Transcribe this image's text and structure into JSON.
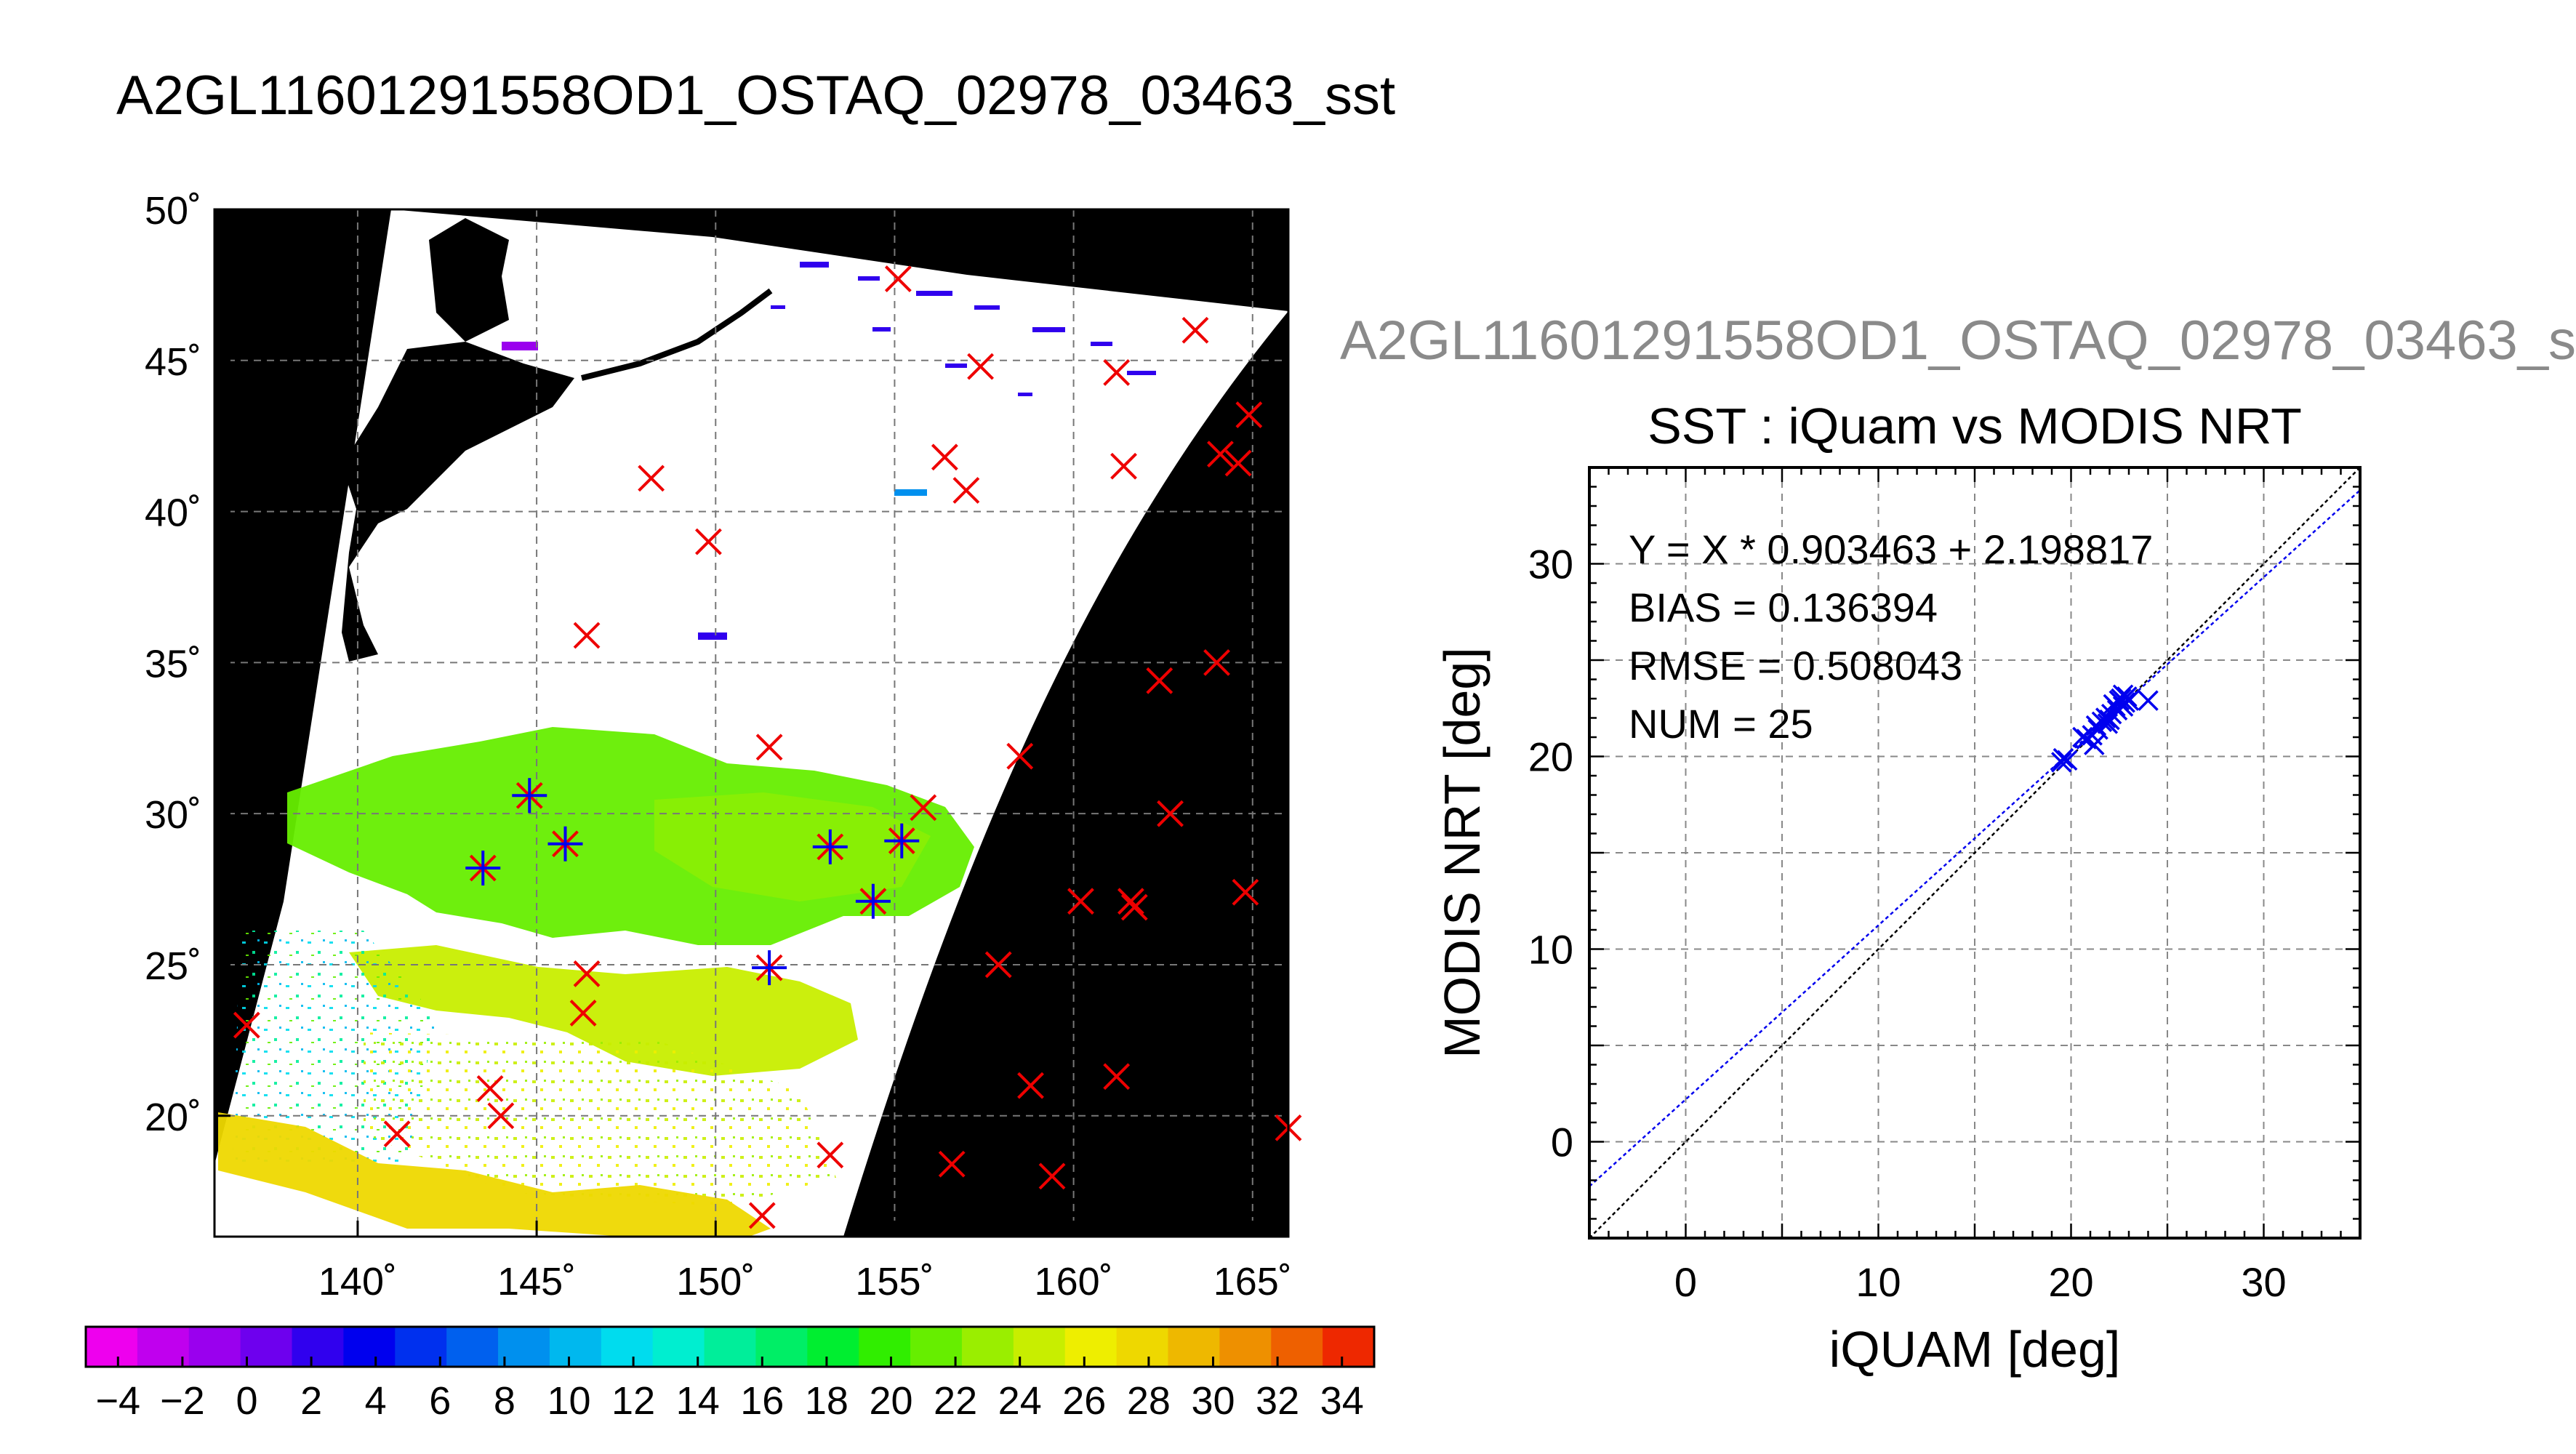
{
  "figure": {
    "title": "A2GL11601291558OD1_OSTAQ_02978_03463_sst",
    "ghost_title": "A2GL11601291558OD1_OSTAQ_02978_03463_s"
  },
  "chart_data": [
    {
      "type": "map",
      "title": "",
      "xlabel": "",
      "ylabel": "",
      "lon_range": [
        136,
        166
      ],
      "lat_range": [
        16,
        50
      ],
      "lon_ticks": [
        140,
        145,
        150,
        155,
        160,
        165
      ],
      "lat_ticks": [
        20,
        25,
        30,
        35,
        40,
        45,
        50
      ],
      "lon_tick_labels": [
        "140˚",
        "145˚",
        "150˚",
        "155˚",
        "160˚",
        "165˚"
      ],
      "lat_tick_labels": [
        "20˚",
        "25˚",
        "30˚",
        "35˚",
        "40˚",
        "45˚",
        "50˚"
      ],
      "grid": true,
      "colorbar": {
        "range": [
          -5,
          35
        ],
        "ticks": [
          -4,
          -2,
          0,
          2,
          4,
          6,
          8,
          10,
          12,
          14,
          16,
          18,
          20,
          22,
          24,
          26,
          28,
          30,
          32,
          34
        ],
        "tick_labels": [
          "−4",
          "−2",
          "0",
          "2",
          "4",
          "6",
          "8",
          "10",
          "12",
          "14",
          "16",
          "18",
          "20",
          "22",
          "24",
          "26",
          "28",
          "30",
          "32",
          "34"
        ],
        "colors": [
          "#ee00ee",
          "#c000ee",
          "#9a00ee",
          "#6e00ee",
          "#3000ee",
          "#0000ee",
          "#0030ee",
          "#0060ee",
          "#0090ee",
          "#00b8ee",
          "#00dcee",
          "#00eed0",
          "#00ee9a",
          "#00ee66",
          "#00ee30",
          "#30ee00",
          "#66ee00",
          "#9aee00",
          "#c8ee00",
          "#eeee00",
          "#eed800",
          "#eeb800",
          "#ee9000",
          "#ee6000",
          "#ee2800"
        ]
      },
      "series": [
        {
          "name": "",
          "marker": "x",
          "color": "#ee0000",
          "points": [
            [
              155.1,
              47.7
            ],
            [
              163.4,
              46.0
            ],
            [
              157.4,
              44.8
            ],
            [
              161.2,
              44.6
            ],
            [
              164.9,
              43.2
            ],
            [
              156.4,
              41.8
            ],
            [
              161.4,
              41.5
            ],
            [
              164.1,
              41.9
            ],
            [
              164.6,
              41.6
            ],
            [
              148.2,
              41.1
            ],
            [
              157.0,
              40.7
            ],
            [
              149.8,
              39.0
            ],
            [
              146.4,
              35.9
            ],
            [
              164.0,
              35.0
            ],
            [
              162.4,
              34.4
            ],
            [
              151.5,
              32.2
            ],
            [
              158.5,
              31.9
            ],
            [
              155.8,
              30.2
            ],
            [
              162.7,
              30.0
            ],
            [
              144.8,
              30.6
            ],
            [
              143.5,
              28.2
            ],
            [
              145.8,
              29.0
            ],
            [
              153.2,
              28.9
            ],
            [
              155.2,
              29.1
            ],
            [
              154.4,
              27.1
            ],
            [
              160.2,
              27.1
            ],
            [
              161.6,
              27.1
            ],
            [
              161.7,
              26.9
            ],
            [
              164.8,
              27.4
            ],
            [
              151.5,
              24.9
            ],
            [
              146.4,
              24.7
            ],
            [
              157.9,
              25.0
            ],
            [
              146.3,
              23.4
            ],
            [
              136.9,
              23.0
            ],
            [
              161.2,
              21.3
            ],
            [
              158.8,
              21.0
            ],
            [
              143.7,
              20.9
            ],
            [
              144.0,
              20.0
            ],
            [
              141.1,
              19.4
            ],
            [
              166.0,
              19.6
            ],
            [
              153.2,
              18.7
            ],
            [
              156.6,
              18.4
            ],
            [
              159.4,
              18.0
            ],
            [
              151.3,
              16.7
            ]
          ]
        },
        {
          "name": "",
          "marker": "+",
          "color": "#0000ee",
          "points": [
            [
              144.8,
              30.6
            ],
            [
              143.5,
              28.2
            ],
            [
              145.8,
              29.0
            ],
            [
              153.2,
              28.9
            ],
            [
              155.2,
              29.1
            ],
            [
              154.4,
              27.1
            ],
            [
              151.5,
              24.9
            ]
          ]
        }
      ]
    },
    {
      "type": "scatter",
      "title": "SST : iQuam vs MODIS NRT",
      "xlabel": "iQUAM [deg]",
      "ylabel": "MODIS NRT [deg]",
      "xlim": [
        -5,
        35
      ],
      "ylim": [
        -5,
        35
      ],
      "xticks": [
        0,
        10,
        20,
        30
      ],
      "yticks": [
        0,
        10,
        20,
        30
      ],
      "grid": true,
      "annotations": [
        "Y = X * 0.903463 + 2.198817",
        "BIAS = 0.136394",
        "RMSE = 0.508043",
        "NUM = 25"
      ],
      "fit": {
        "slope": 0.903463,
        "intercept": 2.198817,
        "color": "#0000ee"
      },
      "identity": {
        "slope": 1,
        "intercept": 0,
        "color": "#000000"
      },
      "series": [
        {
          "name": "",
          "marker": "x",
          "color": "#0000ee",
          "points": [
            [
              19.5,
              19.7
            ],
            [
              19.6,
              19.9
            ],
            [
              20.8,
              20.9
            ],
            [
              21.1,
              21.1
            ],
            [
              21.3,
              21.6
            ],
            [
              21.2,
              20.6
            ],
            [
              21.6,
              21.8
            ],
            [
              21.8,
              22.0
            ],
            [
              22.0,
              21.9
            ],
            [
              22.1,
              22.2
            ],
            [
              22.3,
              22.6
            ],
            [
              22.5,
              22.9
            ],
            [
              22.6,
              23.0
            ],
            [
              22.7,
              23.2
            ],
            [
              22.8,
              22.8
            ],
            [
              22.9,
              23.1
            ],
            [
              23.0,
              22.9
            ],
            [
              24.0,
              22.9
            ],
            [
              22.4,
              22.4
            ],
            [
              21.9,
              21.7
            ],
            [
              20.6,
              21.0
            ],
            [
              19.8,
              19.8
            ],
            [
              22.2,
              22.7
            ],
            [
              21.4,
              21.4
            ],
            [
              22.7,
              22.6
            ]
          ]
        }
      ]
    }
  ]
}
